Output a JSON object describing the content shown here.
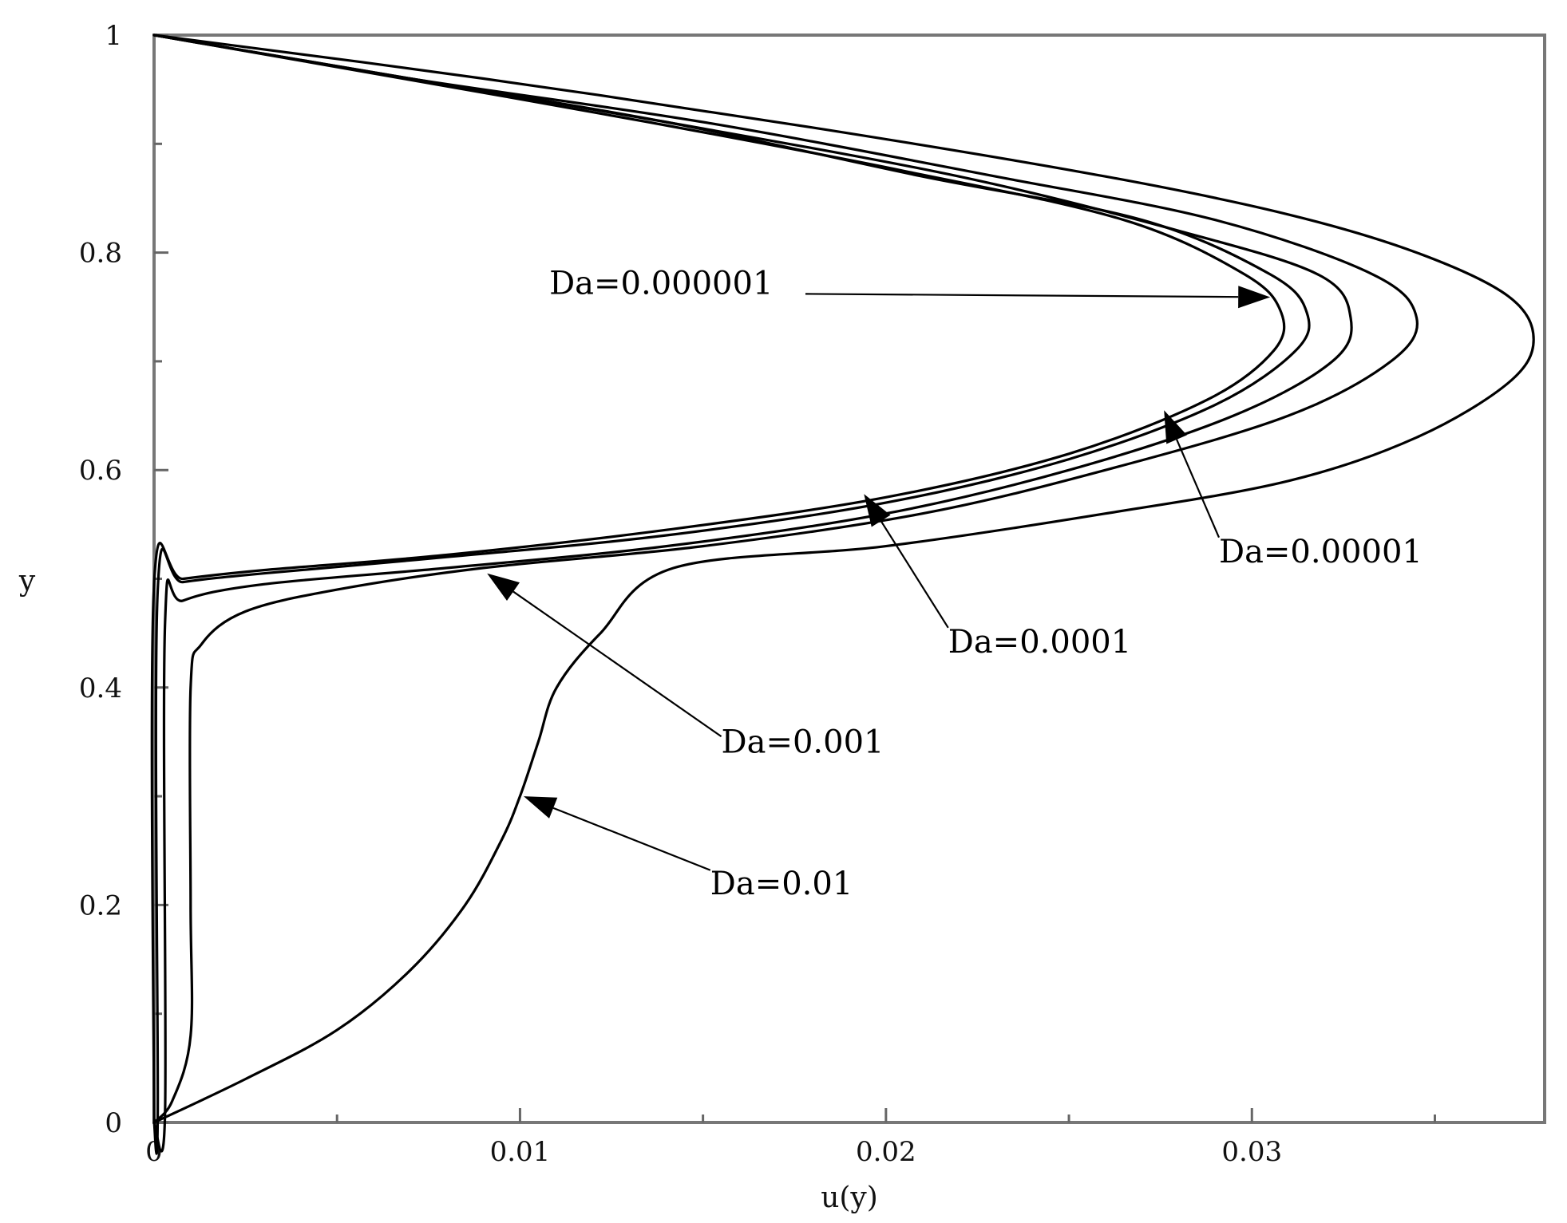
{
  "chart_data": {
    "type": "line",
    "title": "",
    "xlabel": "u(y)",
    "ylabel": "y",
    "xlim": [
      0,
      0.038
    ],
    "ylim": [
      0,
      1
    ],
    "x_ticks": [
      0,
      0.01,
      0.02,
      0.03
    ],
    "x_tick_labels": [
      "0",
      "0.01",
      "0.02",
      "0.03"
    ],
    "y_ticks": [
      0,
      0.2,
      0.4,
      0.6,
      0.8,
      1
    ],
    "y_tick_labels": [
      "0",
      "0.2",
      "0.4",
      "0.6",
      "0.8",
      "1"
    ],
    "grid": false,
    "legend": "none",
    "series": [
      {
        "name": "Da=0.01",
        "points": [
          [
            0,
            0
          ],
          [
            0.0025,
            0.04
          ],
          [
            0.005,
            0.085
          ],
          [
            0.007,
            0.14
          ],
          [
            0.0085,
            0.2
          ],
          [
            0.0095,
            0.26
          ],
          [
            0.01,
            0.3
          ],
          [
            0.0105,
            0.35
          ],
          [
            0.011,
            0.4
          ],
          [
            0.0122,
            0.45
          ],
          [
            0.0142,
            0.51
          ],
          [
            0.02,
            0.53
          ],
          [
            0.026,
            0.56
          ],
          [
            0.031,
            0.59
          ],
          [
            0.0345,
            0.63
          ],
          [
            0.037,
            0.68
          ],
          [
            0.0377,
            0.72
          ],
          [
            0.037,
            0.76
          ],
          [
            0.0345,
            0.8
          ],
          [
            0.031,
            0.835
          ],
          [
            0.026,
            0.87
          ],
          [
            0.018,
            0.915
          ],
          [
            0.009,
            0.96
          ],
          [
            0,
            1
          ]
        ]
      },
      {
        "name": "Da=0.001",
        "points": [
          [
            0,
            0
          ],
          [
            0.0005,
            0.02
          ],
          [
            0.001,
            0.08
          ],
          [
            0.001,
            0.2
          ],
          [
            0.001,
            0.4
          ],
          [
            0.0013,
            0.44
          ],
          [
            0.0025,
            0.47
          ],
          [
            0.005,
            0.49
          ],
          [
            0.009,
            0.51
          ],
          [
            0.015,
            0.53
          ],
          [
            0.021,
            0.56
          ],
          [
            0.026,
            0.6
          ],
          [
            0.031,
            0.65
          ],
          [
            0.0338,
            0.7
          ],
          [
            0.0345,
            0.74
          ],
          [
            0.0333,
            0.78
          ],
          [
            0.029,
            0.83
          ],
          [
            0.023,
            0.87
          ],
          [
            0.015,
            0.92
          ],
          [
            0.007,
            0.96
          ],
          [
            0,
            1
          ]
        ]
      },
      {
        "name": "Da=0.0001",
        "points": [
          [
            0,
            0
          ],
          [
            0.0003,
            0.01
          ],
          [
            0.0003,
            0.46
          ],
          [
            0.0008,
            0.48
          ],
          [
            0.003,
            0.495
          ],
          [
            0.008,
            0.51
          ],
          [
            0.014,
            0.53
          ],
          [
            0.02,
            0.56
          ],
          [
            0.025,
            0.6
          ],
          [
            0.0295,
            0.65
          ],
          [
            0.0322,
            0.7
          ],
          [
            0.0327,
            0.74
          ],
          [
            0.0318,
            0.78
          ],
          [
            0.028,
            0.82
          ],
          [
            0.022,
            0.87
          ],
          [
            0.014,
            0.92
          ],
          [
            0.007,
            0.96
          ],
          [
            0,
            1
          ]
        ]
      },
      {
        "name": "Da=0.00001",
        "points": [
          [
            0,
            0
          ],
          [
            0.0001,
            0.01
          ],
          [
            0.0001,
            0.49
          ],
          [
            0.0008,
            0.497
          ],
          [
            0.003,
            0.505
          ],
          [
            0.008,
            0.52
          ],
          [
            0.014,
            0.54
          ],
          [
            0.02,
            0.57
          ],
          [
            0.025,
            0.61
          ],
          [
            0.029,
            0.66
          ],
          [
            0.0312,
            0.71
          ],
          [
            0.0315,
            0.745
          ],
          [
            0.0305,
            0.78
          ],
          [
            0.027,
            0.83
          ],
          [
            0.021,
            0.87
          ],
          [
            0.014,
            0.92
          ],
          [
            0.007,
            0.96
          ],
          [
            0,
            1
          ]
        ]
      },
      {
        "name": "Da=0.000001",
        "points": [
          [
            0,
            0
          ],
          [
            0,
            0.495
          ],
          [
            0.0008,
            0.5
          ],
          [
            0.003,
            0.508
          ],
          [
            0.008,
            0.522
          ],
          [
            0.014,
            0.545
          ],
          [
            0.02,
            0.575
          ],
          [
            0.025,
            0.615
          ],
          [
            0.0288,
            0.665
          ],
          [
            0.0306,
            0.71
          ],
          [
            0.0308,
            0.745
          ],
          [
            0.0298,
            0.78
          ],
          [
            0.0265,
            0.83
          ],
          [
            0.0205,
            0.875
          ],
          [
            0.0135,
            0.92
          ],
          [
            0.0068,
            0.96
          ],
          [
            0,
            1
          ]
        ]
      }
    ],
    "annotations": [
      {
        "text": "Da=0.000001",
        "text_at": [
          0.0108,
          0.762
        ],
        "arrow_from": [
          0.0178,
          0.762
        ],
        "arrow_to": [
          0.0305,
          0.759
        ]
      },
      {
        "text": "Da=0.00001",
        "text_at": [
          0.0291,
          0.515
        ],
        "arrow_from": [
          0.0291,
          0.538
        ],
        "arrow_to": [
          0.0276,
          0.655
        ]
      },
      {
        "text": "Da=0.0001",
        "text_at": [
          0.0217,
          0.432
        ],
        "arrow_from": [
          0.0217,
          0.455
        ],
        "arrow_to": [
          0.0194,
          0.578
        ]
      },
      {
        "text": "Da=0.001",
        "text_at": [
          0.0155,
          0.34
        ],
        "arrow_from": [
          0.0155,
          0.355
        ],
        "arrow_to": [
          0.0091,
          0.505
        ]
      },
      {
        "text": "Da=0.01",
        "text_at": [
          0.0152,
          0.21
        ],
        "arrow_from": [
          0.0152,
          0.232
        ],
        "arrow_to": [
          0.0101,
          0.3
        ]
      }
    ]
  }
}
